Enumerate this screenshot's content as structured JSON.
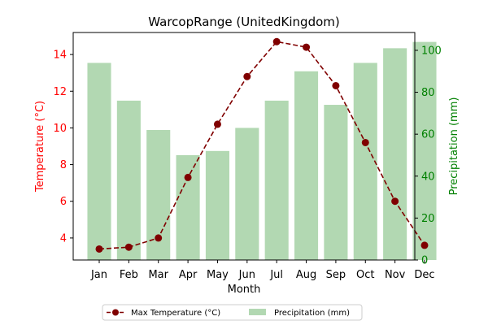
{
  "chart_data": {
    "type": "bar+line",
    "title": "WarcopRange (UnitedKingdom)",
    "xlabel": "Month",
    "categories": [
      "Jan",
      "Feb",
      "Mar",
      "Apr",
      "May",
      "Jun",
      "Jul",
      "Aug",
      "Sep",
      "Oct",
      "Nov",
      "Dec"
    ],
    "left_axis": {
      "label": "Temperature (°C)",
      "color": "#ff0000",
      "ylim": [
        2.8,
        15.2
      ],
      "ticks": [
        4,
        6,
        8,
        10,
        12,
        14
      ]
    },
    "right_axis": {
      "label": "Precipitation (mm)",
      "color": "#008000",
      "ylim": [
        0,
        108.5
      ],
      "ticks": [
        0,
        20,
        40,
        60,
        80,
        100
      ]
    },
    "series": [
      {
        "name": "Max Temperature (°C)",
        "kind": "line",
        "axis": "left",
        "color": "#800000",
        "line_style": "dashed",
        "marker": "circle",
        "values": [
          3.4,
          3.5,
          4.0,
          7.3,
          10.2,
          12.8,
          14.7,
          14.4,
          12.3,
          9.2,
          6.0,
          3.6
        ]
      },
      {
        "name": "Precipitation (mm)",
        "kind": "bar",
        "axis": "right",
        "color": "#b2d8b2",
        "values": [
          94,
          76,
          62,
          50,
          52,
          63,
          76,
          90,
          74,
          94,
          101,
          104
        ]
      }
    ],
    "legend_position": "bottom-center",
    "grid": false
  }
}
